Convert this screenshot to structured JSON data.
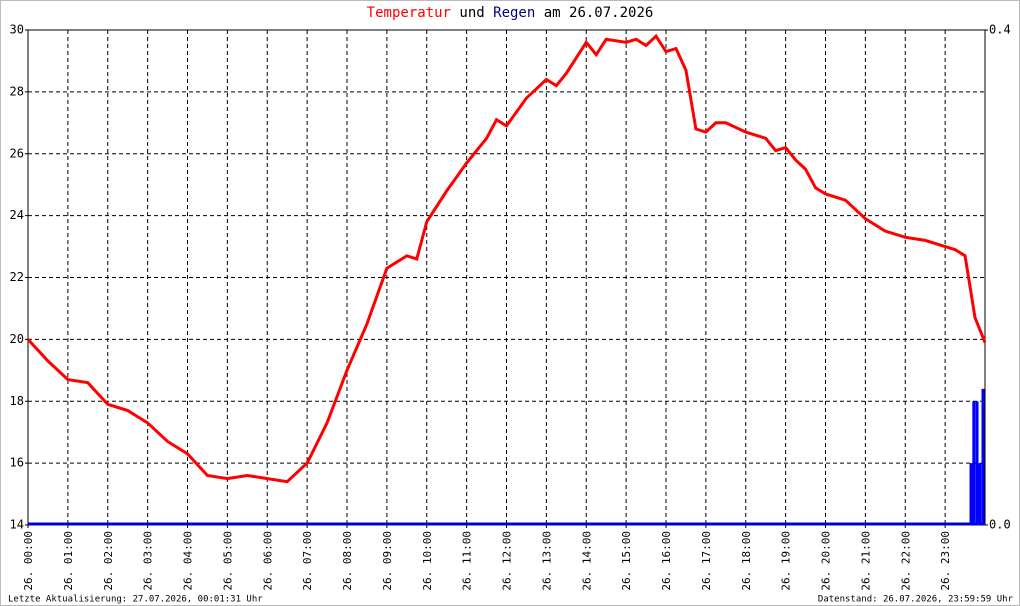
{
  "chart_data": {
    "type": "line",
    "title_parts": [
      {
        "text": "Temperatur",
        "color": "#ff0000"
      },
      {
        "text": "und",
        "color": "#000000"
      },
      {
        "text": "Regen",
        "color": "#000080"
      },
      {
        "text": "am 26.07.2026",
        "color": "#000000"
      }
    ],
    "series": [
      {
        "name": "Temperatur",
        "color": "#ff0000",
        "x": [
          0,
          0.5,
          1,
          1.5,
          2,
          2.5,
          3,
          3.5,
          4,
          4.5,
          5,
          5.5,
          6,
          6.5,
          7,
          7.5,
          8,
          8.5,
          9,
          9.5,
          9.75,
          10,
          10.5,
          11,
          11.5,
          11.75,
          12,
          12.5,
          13,
          13.25,
          13.5,
          14,
          14.25,
          14.5,
          15,
          15.25,
          15.5,
          15.75,
          16,
          16.25,
          16.5,
          16.75,
          17,
          17.25,
          17.5,
          18,
          18.5,
          18.75,
          19,
          19.25,
          19.5,
          19.75,
          20,
          20.5,
          20.75,
          21,
          21.5,
          22,
          22.5,
          23,
          23.25,
          23.5,
          23.75,
          24
        ],
        "values": [
          20.0,
          19.3,
          18.7,
          18.6,
          17.9,
          17.7,
          17.3,
          16.7,
          16.3,
          15.6,
          15.5,
          15.6,
          15.5,
          15.4,
          16.0,
          17.3,
          19.0,
          20.5,
          22.3,
          22.7,
          22.6,
          23.8,
          24.8,
          25.7,
          26.5,
          27.1,
          26.9,
          27.8,
          28.4,
          28.2,
          28.6,
          29.6,
          29.2,
          29.7,
          29.6,
          29.7,
          29.5,
          29.8,
          29.3,
          29.4,
          28.7,
          26.8,
          26.7,
          27.0,
          27.0,
          26.7,
          26.5,
          26.1,
          26.2,
          25.8,
          25.5,
          24.9,
          24.7,
          24.5,
          24.2,
          23.9,
          23.5,
          23.3,
          23.2,
          23.0,
          22.9,
          22.7,
          20.7,
          19.9
        ]
      },
      {
        "name": "Regen",
        "color": "#0000ff",
        "axis": "y2",
        "x": [
          23.65,
          23.72,
          23.8,
          23.87,
          23.95
        ],
        "values": [
          0.05,
          0.1,
          0.1,
          0.05,
          0.11
        ]
      }
    ],
    "xlim": [
      0,
      24
    ],
    "xticks": [
      {
        "value": 0,
        "label": "26. 00:00"
      },
      {
        "value": 1,
        "label": "26. 01:00"
      },
      {
        "value": 2,
        "label": "26. 02:00"
      },
      {
        "value": 3,
        "label": "26. 03:00"
      },
      {
        "value": 4,
        "label": "26. 04:00"
      },
      {
        "value": 5,
        "label": "26. 05:00"
      },
      {
        "value": 6,
        "label": "26. 06:00"
      },
      {
        "value": 7,
        "label": "26. 07:00"
      },
      {
        "value": 8,
        "label": "26. 08:00"
      },
      {
        "value": 9,
        "label": "26. 09:00"
      },
      {
        "value": 10,
        "label": "26. 10:00"
      },
      {
        "value": 11,
        "label": "26. 11:00"
      },
      {
        "value": 12,
        "label": "26. 12:00"
      },
      {
        "value": 13,
        "label": "26. 13:00"
      },
      {
        "value": 14,
        "label": "26. 14:00"
      },
      {
        "value": 15,
        "label": "26. 15:00"
      },
      {
        "value": 16,
        "label": "26. 16:00"
      },
      {
        "value": 17,
        "label": "26. 17:00"
      },
      {
        "value": 18,
        "label": "26. 18:00"
      },
      {
        "value": 19,
        "label": "26. 19:00"
      },
      {
        "value": 20,
        "label": "26. 20:00"
      },
      {
        "value": 21,
        "label": "26. 21:00"
      },
      {
        "value": 22,
        "label": "26. 22:00"
      },
      {
        "value": 23,
        "label": "26. 23:00"
      }
    ],
    "ylim": [
      14,
      30
    ],
    "yticks": [
      14,
      16,
      18,
      20,
      22,
      24,
      26,
      28,
      30
    ],
    "y2lim": [
      0,
      0.4
    ],
    "y2ticks": [
      {
        "value": 0,
        "label": "0.0"
      },
      0.4
    ],
    "grid": true,
    "footer_left": "Letzte Aktualisierung: 27.07.2026, 00:01:31 Uhr",
    "footer_right": "Datenstand: 26.07.2026, 23:59:59 Uhr"
  }
}
